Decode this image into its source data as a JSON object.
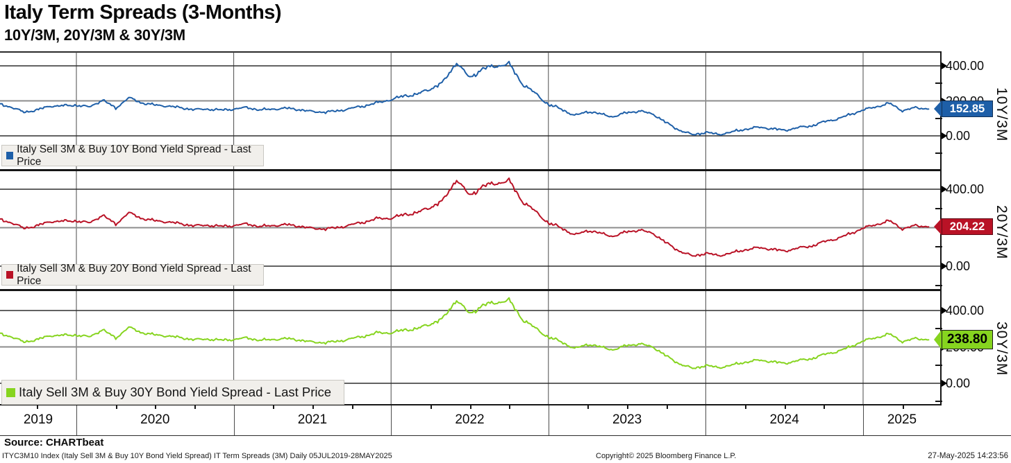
{
  "header": {
    "title": "Italy Term Spreads (3-Months)",
    "subtitle": "10Y/3M, 20Y/3M & 30Y/3M"
  },
  "chart_data": {
    "type": "line",
    "title": "Italy Term Spreads (3-Months)",
    "subtitle": "10Y/3M, 20Y/3M & 30Y/3M",
    "date_range": "05JUL2019-28MAY2025",
    "frequency": "Daily",
    "x_axis": {
      "years": [
        "2019",
        "2020",
        "2021",
        "2022",
        "2023",
        "2024",
        "2025"
      ],
      "grid": true
    },
    "y_axis": {
      "tick_values": [
        400,
        200,
        0
      ],
      "tick_labels": [
        "400.00",
        "200.00",
        "0.00"
      ],
      "minor_step": 100,
      "side": "right"
    },
    "x_monthly_start": "2019-07",
    "panels": [
      {
        "id": "10y3m",
        "axis_label": "10Y/3M",
        "legend": "Italy Sell 3M & Buy 10Y Bond Yield Spread - Last Price",
        "last_price": "152.85",
        "last_value": 152.85,
        "color": "#1e5fa8",
        "label_text_color": "#ffffff",
        "monthly_values": [
          185,
          165,
          135,
          148,
          170,
          172,
          175,
          165,
          205,
          158,
          218,
          188,
          176,
          170,
          160,
          150,
          153,
          147,
          153,
          162,
          148,
          153,
          158,
          150,
          138,
          136,
          143,
          158,
          172,
          190,
          207,
          228,
          238,
          268,
          308,
          420,
          330,
          385,
          398,
          412,
          298,
          243,
          178,
          153,
          115,
          140,
          124,
          109,
          134,
          141,
          124,
          74,
          32,
          6,
          20,
          8,
          22,
          38,
          49,
          42,
          31,
          47,
          56,
          80,
          96,
          121,
          148,
          166,
          186,
          144,
          161,
          152.85
        ]
      },
      {
        "id": "20y3m",
        "axis_label": "20Y/3M",
        "legend": "Italy Sell 3M & Buy 20Y Bond Yield Spread - Last Price",
        "last_price": "204.22",
        "last_value": 204.22,
        "color": "#b91226",
        "label_text_color": "#ffffff",
        "monthly_values": [
          247,
          227,
          197,
          210,
          232,
          234,
          235,
          225,
          265,
          218,
          278,
          248,
          236,
          230,
          220,
          210,
          213,
          207,
          211,
          220,
          206,
          211,
          216,
          208,
          196,
          194,
          201,
          216,
          230,
          248,
          249,
          268,
          278,
          306,
          343,
          452,
          365,
          417,
          430,
          445,
          338,
          285,
          224,
          199,
          161,
          186,
          170,
          155,
          180,
          187,
          170,
          120,
          78,
          52,
          67,
          55,
          69,
          85,
          96,
          89,
          78,
          94,
          103,
          127,
          143,
          168,
          198,
          216,
          236,
          194,
          211,
          204.22
        ]
      },
      {
        "id": "30y3m",
        "axis_label": "30Y/3M",
        "legend": "Italy Sell 3M & Buy 30Y Bond Yield Spread - Last Price",
        "last_price": "238.80",
        "last_value": 238.8,
        "color": "#86d41f",
        "label_text_color": "#000000",
        "monthly_values": [
          277,
          257,
          227,
          240,
          262,
          264,
          265,
          255,
          295,
          248,
          308,
          278,
          266,
          260,
          250,
          240,
          243,
          237,
          241,
          250,
          236,
          241,
          246,
          238,
          226,
          224,
          231,
          246,
          260,
          278,
          277,
          293,
          300,
          326,
          358,
          460,
          380,
          430,
          443,
          457,
          353,
          303,
          253,
          228,
          190,
          215,
          199,
          184,
          209,
          216,
          199,
          149,
          107,
          81,
          98,
          86,
          100,
          116,
          127,
          120,
          109,
          125,
          134,
          158,
          174,
          199,
          233,
          251,
          271,
          229,
          246,
          238.8
        ]
      }
    ]
  },
  "footer": {
    "source": "Source: CHARTbeat",
    "info": "ITYC3M10 Index (Italy Sell 3M & Buy 10Y Bond Yield Spread) IT Term Spreads (3M)  Daily 05JUL2019-28MAY2025",
    "copyright": "Copyright© 2025 Bloomberg Finance L.P.",
    "timestamp": "27-May-2025 14:23:56"
  }
}
